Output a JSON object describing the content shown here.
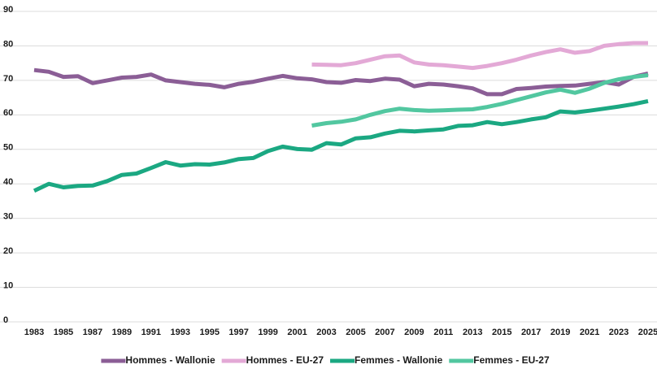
{
  "chart_data": {
    "type": "line",
    "x": [
      1983,
      1984,
      1985,
      1986,
      1987,
      1988,
      1989,
      1990,
      1991,
      1992,
      1993,
      1994,
      1995,
      1996,
      1997,
      1998,
      1999,
      2000,
      2001,
      2002,
      2003,
      2004,
      2005,
      2006,
      2007,
      2008,
      2009,
      2010,
      2011,
      2012,
      2013,
      2014,
      2015,
      2016,
      2017,
      2018,
      2019,
      2020,
      2021,
      2022,
      2023,
      2024,
      2025
    ],
    "xlim": [
      1983,
      2025
    ],
    "xticks": [
      1983,
      1985,
      1987,
      1989,
      1991,
      1993,
      1995,
      1997,
      1999,
      2001,
      2003,
      2005,
      2007,
      2009,
      2011,
      2013,
      2015,
      2017,
      2019,
      2021,
      2023,
      2025
    ],
    "ylim": [
      0,
      90
    ],
    "yticks": [
      0,
      10,
      20,
      30,
      40,
      50,
      60,
      70,
      80,
      90
    ],
    "grid": true,
    "legend": "bottom",
    "series": [
      {
        "name": "Hommes - Wallonie",
        "color": "#8b5e96",
        "values": [
          73.0,
          72.5,
          71.0,
          71.2,
          69.2,
          70.0,
          70.8,
          71.0,
          71.7,
          70.0,
          69.5,
          69.0,
          68.7,
          68.0,
          69.0,
          69.6,
          70.5,
          71.3,
          70.6,
          70.3,
          69.5,
          69.3,
          70.1,
          69.8,
          70.5,
          70.2,
          68.3,
          69.0,
          68.8,
          68.3,
          67.7,
          66.0,
          66.0,
          67.5,
          67.8,
          68.2,
          68.4,
          68.5,
          69.0,
          69.5,
          68.8,
          71.0,
          72.0
        ]
      },
      {
        "name": "Hommes - EU-27",
        "color": "#e3a9d6",
        "values": [
          null,
          null,
          null,
          null,
          null,
          null,
          null,
          null,
          null,
          null,
          null,
          null,
          null,
          null,
          null,
          null,
          null,
          null,
          null,
          74.6,
          74.5,
          74.4,
          75.0,
          76.0,
          77.0,
          77.2,
          75.2,
          74.6,
          74.4,
          74.0,
          73.6,
          74.2,
          75.0,
          76.0,
          77.2,
          78.2,
          79.0,
          78.0,
          78.5,
          80.0,
          80.5,
          80.8,
          80.8
        ]
      },
      {
        "name": "Femmes - Wallonie",
        "color": "#1ba882",
        "values": [
          38.0,
          40.0,
          39.0,
          39.4,
          39.5,
          40.8,
          42.6,
          43.0,
          44.6,
          46.3,
          45.3,
          45.7,
          45.6,
          46.2,
          47.2,
          47.5,
          49.5,
          50.8,
          50.1,
          49.9,
          51.8,
          51.4,
          53.2,
          53.5,
          54.6,
          55.4,
          55.2,
          55.5,
          55.8,
          56.8,
          57.0,
          57.9,
          57.3,
          57.9,
          58.7,
          59.3,
          61.0,
          60.7,
          61.2,
          61.8,
          62.4,
          63.1,
          64.0
        ]
      },
      {
        "name": "Femmes - EU-27",
        "color": "#52c7a0",
        "values": [
          null,
          null,
          null,
          null,
          null,
          null,
          null,
          null,
          null,
          null,
          null,
          null,
          null,
          null,
          null,
          null,
          null,
          null,
          null,
          56.9,
          57.6,
          58.0,
          58.7,
          60.0,
          61.1,
          61.8,
          61.4,
          61.2,
          61.3,
          61.5,
          61.6,
          62.3,
          63.2,
          64.3,
          65.4,
          66.5,
          67.3,
          66.4,
          67.6,
          69.3,
          70.3,
          71.0,
          71.5
        ]
      }
    ]
  }
}
